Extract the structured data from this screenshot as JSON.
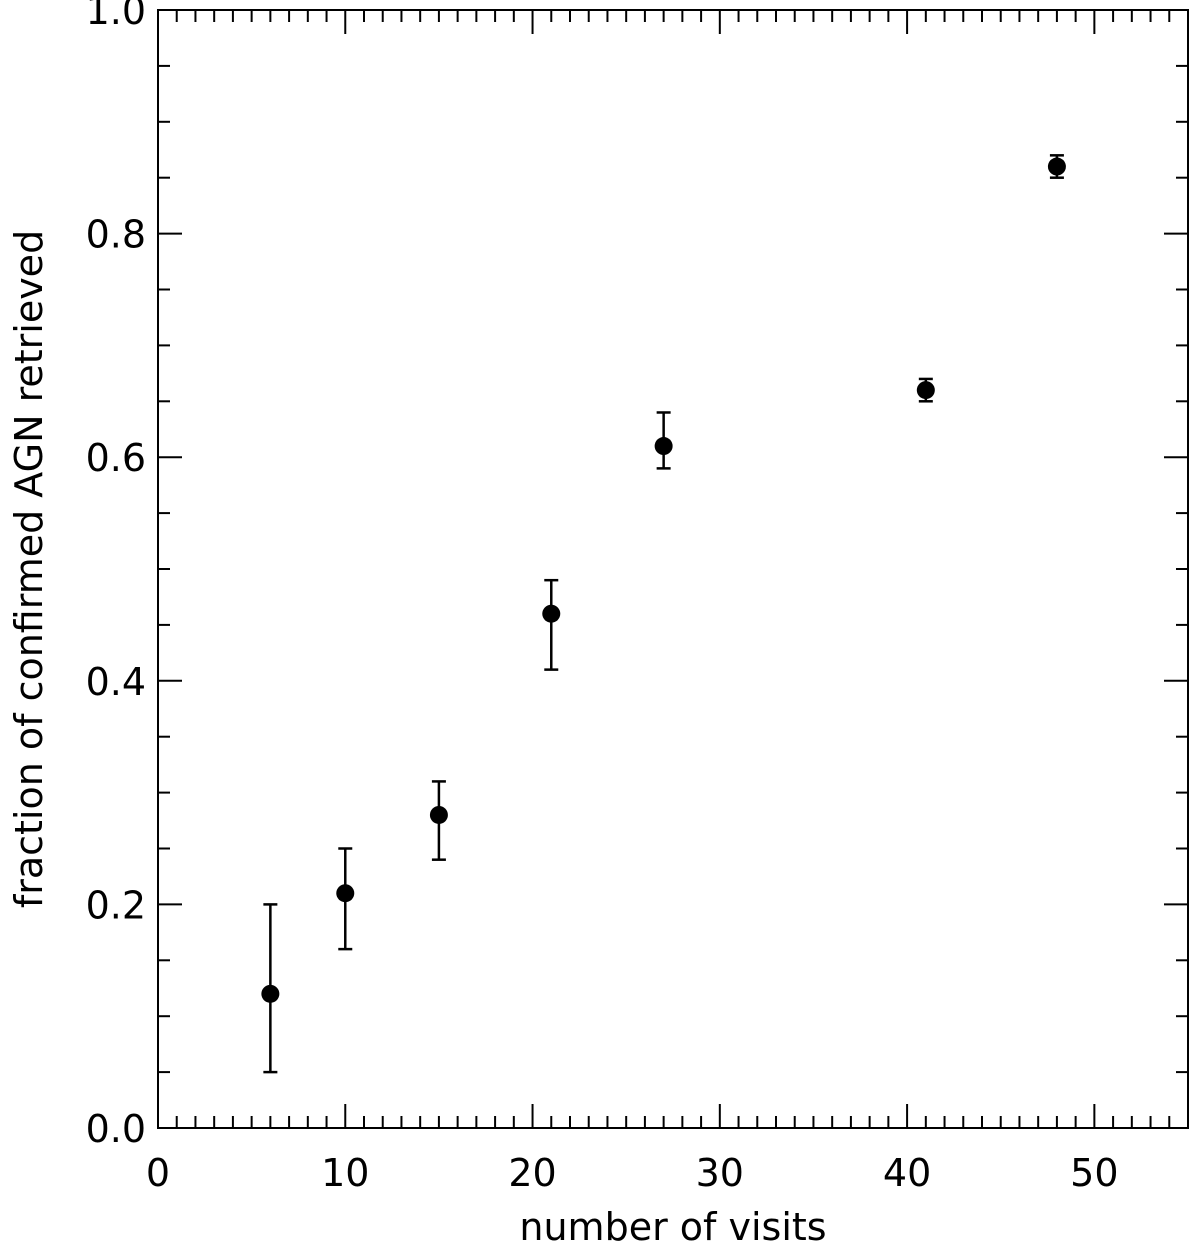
{
  "chart_data": {
    "type": "scatter",
    "title": "",
    "xlabel": "number of visits",
    "ylabel": "fraction of confirmed AGN retrieved",
    "xlim": [
      0,
      55
    ],
    "ylim": [
      0.0,
      1.0
    ],
    "x_ticks": [
      0,
      10,
      20,
      30,
      40,
      50
    ],
    "x_tick_labels": [
      "0",
      "10",
      "20",
      "30",
      "40",
      "50"
    ],
    "y_ticks": [
      0.0,
      0.2,
      0.4,
      0.6,
      0.8,
      1.0
    ],
    "y_tick_labels": [
      "0.0",
      "0.2",
      "0.4",
      "0.6",
      "0.8",
      "1.0"
    ],
    "x_minor_step": 1,
    "y_minor_step": 0.05,
    "grid": false,
    "legend": "none",
    "marker_color": "#000000",
    "series": [
      {
        "x": [
          6,
          10,
          15,
          21,
          27,
          41,
          48
        ],
        "y": [
          0.12,
          0.21,
          0.28,
          0.46,
          0.61,
          0.66,
          0.86
        ],
        "y_err_low": [
          0.05,
          0.16,
          0.24,
          0.41,
          0.59,
          0.65,
          0.85
        ],
        "y_err_high": [
          0.2,
          0.25,
          0.31,
          0.49,
          0.64,
          0.67,
          0.87
        ]
      }
    ]
  }
}
